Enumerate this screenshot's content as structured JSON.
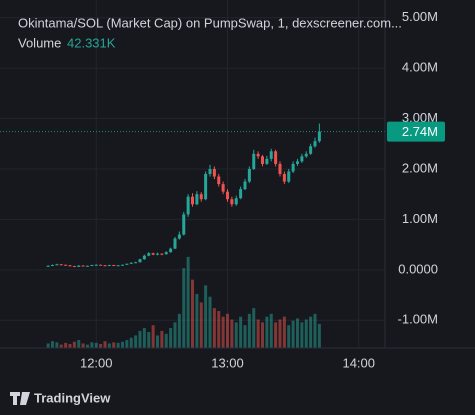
{
  "chart_data": {
    "type": "candlestick",
    "title": "Okintama/SOL (Market Cap) on PumpSwap, 1, dexscreener.com...",
    "x": [
      "11:38",
      "11:40",
      "11:42",
      "11:44",
      "11:46",
      "11:48",
      "11:50",
      "11:52",
      "11:54",
      "11:56",
      "11:58",
      "12:00",
      "12:02",
      "12:04",
      "12:06",
      "12:08",
      "12:10",
      "12:12",
      "12:14",
      "12:16",
      "12:18",
      "12:20",
      "12:22",
      "12:24",
      "12:26",
      "12:28",
      "12:30",
      "12:32",
      "12:34",
      "12:36",
      "12:38",
      "12:40",
      "12:42",
      "12:44",
      "12:46",
      "12:48",
      "12:50",
      "12:52",
      "12:54",
      "12:56",
      "12:58",
      "13:00",
      "13:02",
      "13:04",
      "13:06",
      "13:08",
      "13:10",
      "13:12",
      "13:14",
      "13:16",
      "13:18",
      "13:20",
      "13:22",
      "13:24",
      "13:26",
      "13:28",
      "13:30",
      "13:32",
      "13:34",
      "13:36",
      "13:38",
      "13:40",
      "13:42"
    ],
    "open": [
      70000,
      80000,
      95000,
      110000,
      100000,
      90000,
      75000,
      60000,
      85000,
      70000,
      80000,
      95000,
      100000,
      90000,
      85000,
      95000,
      90000,
      90000,
      100000,
      120000,
      140000,
      150000,
      210000,
      280000,
      330000,
      300000,
      320000,
      310000,
      350000,
      420000,
      620000,
      700000,
      1100000,
      1450000,
      1300000,
      1500000,
      1400000,
      1900000,
      2000000,
      1850000,
      1700000,
      1550000,
      1400000,
      1300000,
      1420000,
      1600000,
      1750000,
      2000000,
      2300000,
      2250000,
      2100000,
      2200000,
      2350000,
      2100000,
      1900000,
      1750000,
      1950000,
      2100000,
      2150000,
      2250000,
      2300000,
      2450000,
      2550000
    ],
    "high": [
      90000,
      105000,
      120000,
      115000,
      105000,
      95000,
      80000,
      90000,
      90000,
      85000,
      100000,
      110000,
      105000,
      95000,
      100000,
      100000,
      95000,
      105000,
      125000,
      150000,
      160000,
      220000,
      300000,
      350000,
      340000,
      340000,
      330000,
      370000,
      440000,
      650000,
      760000,
      1150000,
      1500000,
      1520000,
      1560000,
      1540000,
      1950000,
      2080000,
      2050000,
      1900000,
      1750000,
      1600000,
      1450000,
      1470000,
      1650000,
      1800000,
      2050000,
      2380000,
      2350000,
      2280000,
      2260000,
      2400000,
      2380000,
      2150000,
      1950000,
      2000000,
      2150000,
      2200000,
      2300000,
      2350000,
      2500000,
      2620000,
      2900000
    ],
    "low": [
      60000,
      75000,
      90000,
      95000,
      85000,
      70000,
      55000,
      55000,
      65000,
      65000,
      75000,
      90000,
      85000,
      80000,
      80000,
      85000,
      85000,
      85000,
      95000,
      115000,
      135000,
      145000,
      200000,
      270000,
      290000,
      290000,
      290000,
      300000,
      340000,
      410000,
      600000,
      680000,
      1050000,
      1250000,
      1280000,
      1350000,
      1380000,
      1850000,
      1800000,
      1650000,
      1500000,
      1350000,
      1250000,
      1270000,
      1400000,
      1580000,
      1720000,
      1980000,
      2200000,
      2050000,
      2080000,
      2150000,
      2050000,
      1850000,
      1700000,
      1720000,
      1920000,
      2060000,
      2120000,
      2220000,
      2280000,
      2420000,
      2520000
    ],
    "close": [
      80000,
      95000,
      110000,
      100000,
      90000,
      75000,
      60000,
      85000,
      70000,
      80000,
      95000,
      100000,
      90000,
      85000,
      95000,
      90000,
      90000,
      100000,
      120000,
      140000,
      150000,
      210000,
      280000,
      330000,
      300000,
      320000,
      310000,
      350000,
      420000,
      620000,
      700000,
      1100000,
      1450000,
      1300000,
      1500000,
      1400000,
      1900000,
      2000000,
      1850000,
      1700000,
      1550000,
      1400000,
      1300000,
      1420000,
      1600000,
      1750000,
      2000000,
      2300000,
      2250000,
      2100000,
      2200000,
      2350000,
      2100000,
      1900000,
      1750000,
      1950000,
      2100000,
      2150000,
      2250000,
      2300000,
      2450000,
      2550000,
      2740000
    ],
    "close_label": "2.74M",
    "up_color": "#26a69a",
    "down_color": "#ef5350",
    "volume": {
      "name": "Volume",
      "values": [
        8000,
        12000,
        10000,
        6000,
        9000,
        7000,
        11000,
        14000,
        8000,
        6000,
        10000,
        9000,
        7000,
        12000,
        8000,
        10000,
        9000,
        11000,
        14000,
        18000,
        22000,
        30000,
        35000,
        28000,
        40000,
        22000,
        30000,
        25000,
        35000,
        45000,
        60000,
        140000,
        160000,
        120000,
        95000,
        80000,
        110000,
        90000,
        70000,
        65000,
        55000,
        60000,
        50000,
        45000,
        55000,
        40000,
        60000,
        70000,
        50000,
        45000,
        55000,
        60000,
        45000,
        50000,
        55000,
        40000,
        48000,
        52000,
        45000,
        50000,
        55000,
        60000,
        42331
      ],
      "last_label": "42.331K",
      "ylim": [
        0,
        165000
      ]
    },
    "xlim": [
      "11:16",
      "14:12"
    ],
    "xticks": [
      "12:00",
      "13:00",
      "14:00"
    ],
    "ylim": [
      -1550000,
      5350000
    ],
    "yticks": [
      {
        "value": 5000000,
        "label": "5.00M"
      },
      {
        "value": 4000000,
        "label": "4.00M"
      },
      {
        "value": 3000000,
        "label": "3.00M"
      },
      {
        "value": 2000000,
        "label": "2.00M"
      },
      {
        "value": 1000000,
        "label": "1.00M"
      },
      {
        "value": 0,
        "label": "0.0000"
      },
      {
        "value": -1000000,
        "label": "-1.00M"
      }
    ],
    "grid": true,
    "brand": "TradingView"
  }
}
